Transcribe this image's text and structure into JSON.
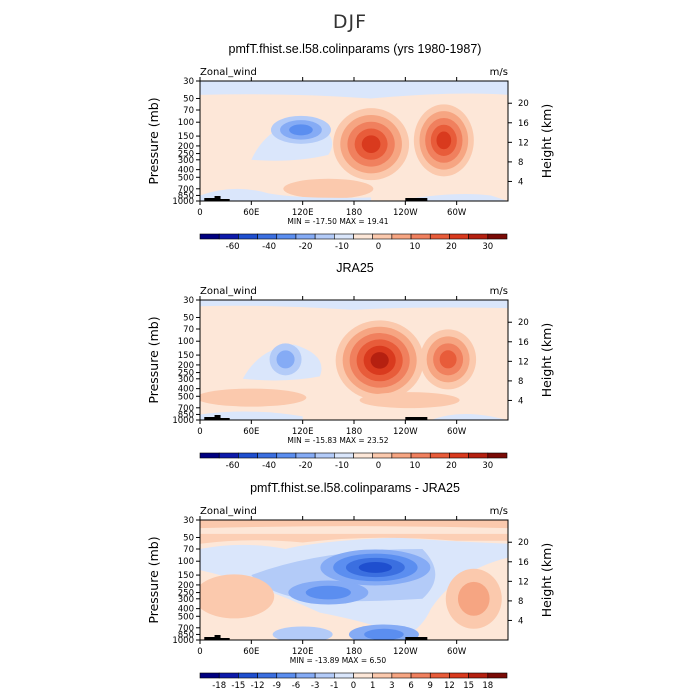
{
  "figure_title": "DJF",
  "colormap_warm_cool": [
    "#000080",
    "#0d1aab",
    "#1f4fcf",
    "#3b6fe0",
    "#5b8ef0",
    "#85abf5",
    "#b3cbf8",
    "#dae6fb",
    "#fde7d8",
    "#fbc9ad",
    "#f6a582",
    "#f0805e",
    "#e85c3a",
    "#d93a1e",
    "#b52010",
    "#7a0a06"
  ],
  "chart_data": [
    {
      "type": "heatmap",
      "name": "model",
      "title": "pmfT.fhist.se.l58.colinparams (yrs 1980-1987)",
      "left_label": "Zonal_wind",
      "right_label": "m/s",
      "ylabel": "Pressure (mb)",
      "ylabel_right": "Height (km)",
      "x_ticks": [
        "0",
        "60E",
        "120E",
        "180",
        "120W",
        "60W"
      ],
      "y_ticks": [
        "30",
        "50",
        "70",
        "100",
        "150",
        "200",
        "250",
        "300",
        "400",
        "500",
        "700",
        "850",
        "1000"
      ],
      "height_ticks": [
        "4",
        "8",
        "12",
        "16",
        "20"
      ],
      "stats": "MIN = -17.50   MAX =  19.41",
      "colorbar_labels": [
        "-60",
        "-40",
        "-20",
        "-10",
        "0",
        "10",
        "20",
        "30"
      ],
      "features": [
        {
          "lon": 200,
          "p": 180,
          "value": 19.4
        },
        {
          "lon": 282,
          "p": 170,
          "value": 17
        },
        {
          "lon": 115,
          "p": 120,
          "value": -17.5
        },
        {
          "lon": 305,
          "p": 1000,
          "value": -6
        }
      ]
    },
    {
      "type": "heatmap",
      "name": "obs",
      "title": "JRA25",
      "left_label": "Zonal_wind",
      "right_label": "m/s",
      "ylabel": "Pressure (mb)",
      "ylabel_right": "Height (km)",
      "x_ticks": [
        "0",
        "60E",
        "120E",
        "180",
        "120W",
        "60W"
      ],
      "y_ticks": [
        "30",
        "50",
        "70",
        "100",
        "150",
        "200",
        "250",
        "300",
        "400",
        "500",
        "700",
        "850",
        "1000"
      ],
      "height_ticks": [
        "4",
        "8",
        "12",
        "16",
        "20"
      ],
      "stats": "MIN = -15.83   MAX =  23.52",
      "colorbar_labels": [
        "-60",
        "-40",
        "-20",
        "-10",
        "0",
        "10",
        "20",
        "30"
      ],
      "features": [
        {
          "lon": 210,
          "p": 180,
          "value": 23.5
        },
        {
          "lon": 288,
          "p": 170,
          "value": 18
        },
        {
          "lon": 100,
          "p": 160,
          "value": -15.8
        }
      ]
    },
    {
      "type": "heatmap",
      "name": "difference",
      "title": "pmfT.fhist.se.l58.colinparams - JRA25",
      "left_label": "Zonal_wind",
      "right_label": "m/s",
      "ylabel": "Pressure (mb)",
      "ylabel_right": "Height (km)",
      "x_ticks": [
        "0",
        "60E",
        "120E",
        "180",
        "120W",
        "60W"
      ],
      "y_ticks": [
        "30",
        "50",
        "70",
        "100",
        "150",
        "200",
        "250",
        "300",
        "400",
        "500",
        "700",
        "850",
        "1000"
      ],
      "height_ticks": [
        "4",
        "8",
        "12",
        "16",
        "20"
      ],
      "stats": "MIN = -13.89   MAX =    6.50",
      "colorbar_labels": [
        "-18",
        "-15",
        "-12",
        "-9",
        "-6",
        "-3",
        "-1",
        "0",
        "1",
        "3",
        "6",
        "9",
        "12",
        "15",
        "18"
      ],
      "features": [
        {
          "lon": 205,
          "p": 110,
          "value": -13.9
        },
        {
          "lon": 160,
          "p": 150,
          "value": -8
        },
        {
          "lon": 310,
          "p": 250,
          "value": 6.5
        },
        {
          "lon": 30,
          "p": 250,
          "value": 4
        }
      ]
    }
  ]
}
